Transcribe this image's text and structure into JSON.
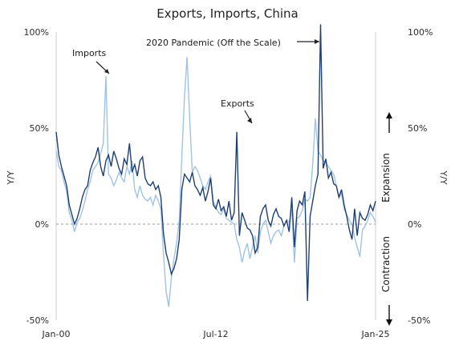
{
  "chart_data": {
    "type": "line",
    "title": "Exports, Imports, China",
    "xlabel": "",
    "ylabel": "Y/Y",
    "ylabel_right": "Y/Y",
    "x_ticks": [
      "Jan-00",
      "Jul-12",
      "Jan-25"
    ],
    "y_ticks": [
      "100%",
      "50%",
      "0%",
      "-50%"
    ],
    "ylim": [
      -50,
      100
    ],
    "grid": false,
    "legend": "none",
    "annotations": {
      "imports": "Imports",
      "exports": "Exports",
      "pandemic": "2020 Pandemic (Off the Scale)",
      "expansion": "Expansion",
      "contraction": "Contraction"
    },
    "colors": {
      "exports": "#1f3f73",
      "imports": "#9fc3e6",
      "zero": "#9b9b9b"
    },
    "series": [
      {
        "name": "Exports",
        "values": [
          48,
          36,
          30,
          25,
          20,
          10,
          5,
          0,
          3,
          8,
          14,
          18,
          20,
          28,
          32,
          35,
          40,
          30,
          25,
          33,
          36,
          30,
          38,
          34,
          29,
          26,
          34,
          31,
          42,
          27,
          31,
          25,
          33,
          35,
          24,
          21,
          20,
          22,
          18,
          20,
          14,
          -5,
          -15,
          -20,
          -26,
          -23,
          -18,
          -8,
          18,
          26,
          24,
          22,
          27,
          20,
          18,
          15,
          19,
          12,
          17,
          24,
          10,
          8,
          13,
          7,
          9,
          4,
          12,
          2,
          6,
          48,
          -6,
          6,
          2,
          -2,
          -3,
          -6,
          -15,
          -12,
          4,
          8,
          10,
          2,
          -1,
          5,
          8,
          4,
          3,
          -1,
          2,
          -4,
          14,
          -12,
          7,
          12,
          10,
          17,
          -40,
          4,
          12,
          20,
          26,
          104,
          29,
          34,
          24,
          27,
          21,
          20,
          14,
          18,
          10,
          4,
          -3,
          -8,
          8,
          -6,
          6,
          3,
          2,
          5,
          10,
          7,
          12
        ]
      },
      {
        "name": "Imports",
        "values": [
          38,
          30,
          28,
          22,
          17,
          6,
          2,
          -4,
          1,
          3,
          7,
          12,
          18,
          22,
          28,
          30,
          32,
          37,
          42,
          77,
          26,
          24,
          20,
          23,
          27,
          24,
          22,
          30,
          26,
          33,
          18,
          14,
          20,
          15,
          13,
          12,
          14,
          10,
          15,
          12,
          8,
          -16,
          -35,
          -43,
          -28,
          -18,
          -10,
          2,
          35,
          66,
          87,
          55,
          27,
          30,
          28,
          24,
          20,
          18,
          22,
          25,
          12,
          9,
          6,
          5,
          8,
          3,
          2,
          1,
          0,
          -8,
          -12,
          -20,
          -14,
          -10,
          -18,
          -12,
          -6,
          -15,
          -4,
          0,
          2,
          -4,
          -10,
          -6,
          -4,
          -3,
          -6,
          -1,
          2,
          1,
          8,
          -20,
          3,
          4,
          7,
          13,
          12,
          14,
          31,
          55,
          38,
          36,
          33,
          32,
          30,
          28,
          26,
          20,
          14,
          16,
          8,
          5,
          2,
          0,
          -7,
          -12,
          -17,
          -3,
          -1,
          2,
          6,
          4,
          1
        ]
      }
    ]
  }
}
